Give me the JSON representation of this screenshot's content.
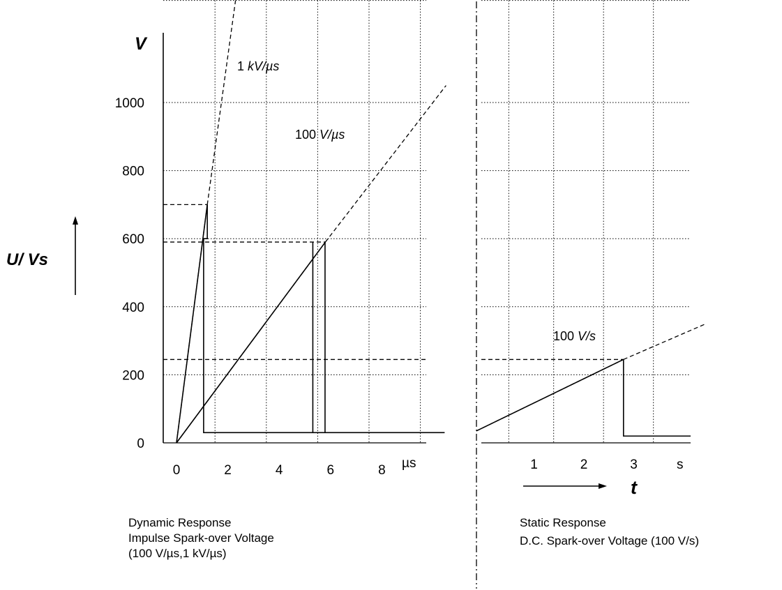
{
  "chart_data": [
    {
      "type": "line",
      "panel": "dynamic",
      "title": "",
      "xlabel": "µs",
      "ylabel": "U/ Vs",
      "y_unit": "V",
      "xlim": [
        -0.5,
        10.5
      ],
      "ylim": [
        0,
        1300
      ],
      "x_ticks": [
        0,
        2,
        4,
        6,
        8
      ],
      "y_ticks": [
        0,
        200,
        400,
        600,
        800,
        1000
      ],
      "grid": true,
      "series": [
        {
          "name": "1 kV/µs",
          "rate_label_pre": "1 ",
          "rate_label_it": "kV/µs",
          "ramp": [
            {
              "x": 0,
              "y": 0
            },
            {
              "x": 1.2,
              "y": 700
            }
          ],
          "extension": [
            {
              "x": 1.2,
              "y": 700
            },
            {
              "x": 2.3,
              "y": 1300
            }
          ],
          "after_spark": [
            {
              "x": 1.6,
              "y": 30
            },
            {
              "x": 10.5,
              "y": 30
            }
          ],
          "spark_over": {
            "x": 1.2,
            "y": 700
          }
        },
        {
          "name": "100 V/µs",
          "rate_label_pre": "100 ",
          "rate_label_it": "V/µs",
          "ramp": [
            {
              "x": 0,
              "y": 0
            },
            {
              "x": 5.8,
              "y": 590
            }
          ],
          "extension": [
            {
              "x": 5.8,
              "y": 590
            },
            {
              "x": 10.5,
              "y": 1050
            }
          ],
          "after_spark": [
            {
              "x": 1.6,
              "y": 30
            },
            {
              "x": 5.8,
              "y": 30
            }
          ],
          "spark_over": {
            "x": 5.8,
            "y": 590
          }
        }
      ],
      "reference_lines_y": [
        700,
        600,
        245
      ]
    },
    {
      "type": "line",
      "panel": "static",
      "title": "",
      "xlabel": "s",
      "ylabel": "t",
      "xlim": [
        -0.1,
        4.2
      ],
      "ylim": [
        0,
        1300
      ],
      "x_ticks": [
        1,
        2,
        3
      ],
      "y_ticks": [
        0,
        200,
        400,
        600,
        800,
        1000
      ],
      "grid": true,
      "series": [
        {
          "name": "100 V/s",
          "rate_label_pre": "100 ",
          "rate_label_it": "V/s",
          "ramp": [
            {
              "x": -0.1,
              "y": 35
            },
            {
              "x": 2.85,
              "y": 245
            }
          ],
          "extension": [
            {
              "x": 2.85,
              "y": 245
            },
            {
              "x": 4.3,
              "y": 350
            }
          ],
          "after_spark": [
            {
              "x": 2.85,
              "y": 20
            },
            {
              "x": 4.2,
              "y": 20
            }
          ],
          "spark_over": {
            "x": 2.85,
            "y": 245
          }
        }
      ]
    }
  ],
  "labels": {
    "y_unit": "V",
    "y_axis_title": "U/ Vs",
    "x_unit_dynamic": "µs",
    "x_unit_static": "s",
    "time_symbol": "t"
  },
  "captions": {
    "dynamic": {
      "line1": "Dynamic Response",
      "line2": "Impulse Spark-over Voltage",
      "line3": "(100 V/µs,1 kV/µs)"
    },
    "static": {
      "line1": "Static Response",
      "line2": "D.C. Spark-over Voltage (100 V/s)"
    }
  }
}
